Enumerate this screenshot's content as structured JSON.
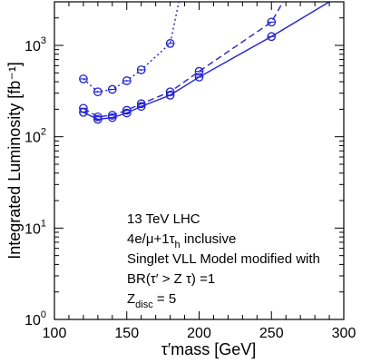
{
  "chart_data": {
    "type": "line",
    "xlabel": "τ′mass  [GeV]",
    "ylabel": "Integrated Luminosity [fb⁻¹]",
    "xlim": [
      100,
      300
    ],
    "ylim": [
      1,
      3000
    ],
    "y_scale": "log",
    "grid": false,
    "x_ticks": [
      100,
      150,
      200,
      250,
      300
    ],
    "y_ticks": [
      {
        "value": 1,
        "base": "10",
        "exp": "0"
      },
      {
        "value": 10,
        "base": "10",
        "exp": "1"
      },
      {
        "value": 100,
        "base": "10",
        "exp": "2"
      },
      {
        "value": 1000,
        "base": "10",
        "exp": "3"
      }
    ],
    "annotations": [
      {
        "text": "13 TeV LHC"
      },
      {
        "text": "4e/μ+1τ",
        "sub": "h",
        "tail": " inclusive"
      },
      {
        "text": "Singlet VLL Model modified with"
      },
      {
        "text": "BR(τ′ > Z τ) =1"
      },
      {
        "text": "Z",
        "sub": "disc",
        "tail": " = 5"
      }
    ],
    "line_color": "#2020e0",
    "series": [
      {
        "style": "solid",
        "x": [
          120,
          130,
          140,
          150,
          160,
          180,
          200,
          250,
          290
        ],
        "y": [
          185,
          155,
          162,
          182,
          215,
          285,
          450,
          1250,
          3000
        ],
        "markers": [
          true,
          true,
          true,
          true,
          true,
          true,
          true,
          true,
          false
        ]
      },
      {
        "style": "dashed",
        "x": [
          120,
          130,
          140,
          150,
          160,
          180,
          200,
          250,
          258
        ],
        "y": [
          205,
          165,
          172,
          195,
          230,
          310,
          520,
          1800,
          3000
        ],
        "markers": [
          true,
          true,
          true,
          true,
          true,
          true,
          true,
          true,
          false
        ]
      },
      {
        "style": "dotted",
        "x": [
          120,
          130,
          140,
          150,
          160,
          180,
          186
        ],
        "y": [
          430,
          310,
          330,
          410,
          540,
          1050,
          3000
        ],
        "markers": [
          true,
          true,
          true,
          true,
          true,
          true,
          false
        ]
      }
    ]
  }
}
